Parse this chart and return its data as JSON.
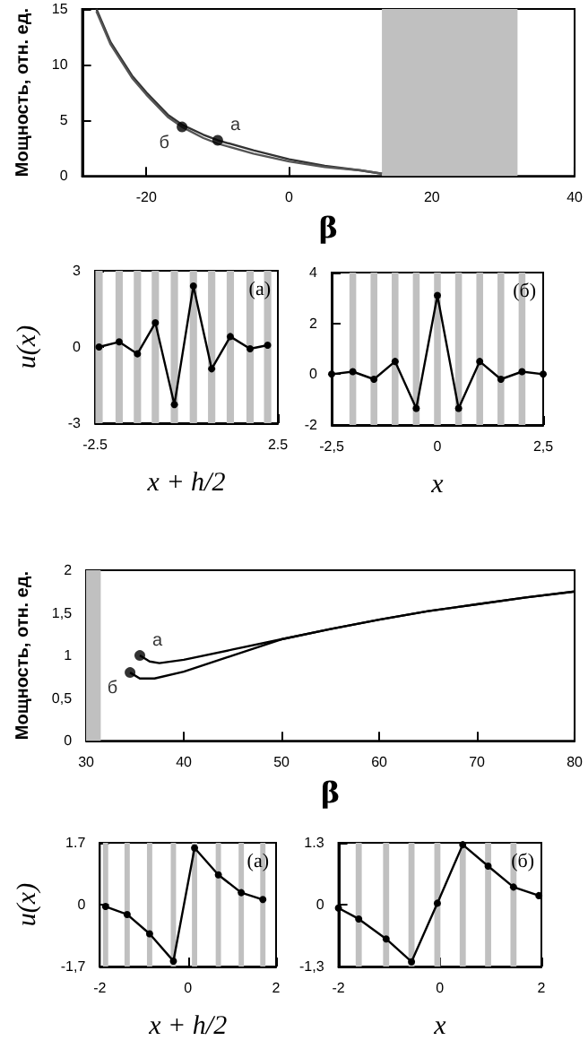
{
  "chart_data": [
    {
      "type": "line",
      "xlabel": "β",
      "ylabel": "Мощность, отн. ед.",
      "xlim": [
        -29,
        40
      ],
      "ylim": [
        0,
        15
      ],
      "xticks": [
        -20,
        0,
        20,
        40
      ],
      "yticks": [
        0,
        5,
        10,
        15
      ],
      "marker": "circle",
      "series": [
        {
          "color": "#333333",
          "marker": "none",
          "x": [
            -27,
            -25,
            -22,
            -20,
            -17,
            -15,
            -12,
            -10,
            -5,
            0,
            5,
            10,
            13
          ],
          "values": [
            15,
            12,
            9,
            7.5,
            5.5,
            4.6,
            3.7,
            3.2,
            2.3,
            1.5,
            0.9,
            0.5,
            0.2
          ]
        },
        {
          "color": "#555555",
          "marker": "none",
          "x": [
            -27,
            -25,
            -22,
            -20,
            -17,
            -15,
            -12,
            -10,
            -5,
            0,
            5,
            10,
            13
          ],
          "values": [
            14.8,
            11.8,
            8.8,
            7.3,
            5.3,
            4.4,
            3.4,
            2.9,
            2.0,
            1.3,
            0.8,
            0.5,
            0.2
          ]
        },
        {
          "type": "scatter",
          "color": "#000000",
          "x": [
            -10,
            -15
          ],
          "values": [
            3.2,
            4.4
          ]
        }
      ],
      "bands": [
        {
          "axis": "x",
          "from": 13,
          "to": 32,
          "color": "#c0c0c0"
        }
      ],
      "annotations": [
        {
          "text": "а",
          "x": -10,
          "y": 3.2
        },
        {
          "text": "б",
          "x": -15,
          "y": 4.4
        }
      ]
    },
    {
      "type": "line",
      "xlabel": "x + h/2",
      "ylabel": "u(x)",
      "xlim": [
        -2.5,
        2.5
      ],
      "ylim": [
        -3,
        3
      ],
      "xticks": [
        -2.5,
        2.5
      ],
      "yticks": [
        -3,
        0,
        3
      ],
      "marker": "circle",
      "series": [
        {
          "color": "#000000",
          "x": [
            -2.39,
            -1.84,
            -1.34,
            -0.85,
            -0.33,
            0.19,
            0.69,
            1.2,
            1.74,
            2.22
          ],
          "values": [
            0,
            0.2,
            -0.27,
            0.95,
            -2.27,
            2.4,
            -0.86,
            0.41,
            -0.07,
            0.07
          ]
        }
      ],
      "bands": [
        {
          "axis": "x",
          "from": -2.49,
          "to": -2.29,
          "color": "#c0c0c0"
        },
        {
          "axis": "x",
          "from": -1.94,
          "to": -1.74,
          "color": "#c0c0c0"
        },
        {
          "axis": "x",
          "from": -1.44,
          "to": -1.24,
          "color": "#c0c0c0"
        },
        {
          "axis": "x",
          "from": -0.95,
          "to": -0.75,
          "color": "#c0c0c0"
        },
        {
          "axis": "x",
          "from": -0.43,
          "to": -0.23,
          "color": "#c0c0c0"
        },
        {
          "axis": "x",
          "from": 0.09,
          "to": 0.29,
          "color": "#c0c0c0"
        },
        {
          "axis": "x",
          "from": 0.59,
          "to": 0.79,
          "color": "#c0c0c0"
        },
        {
          "axis": "x",
          "from": 1.1,
          "to": 1.3,
          "color": "#c0c0c0"
        },
        {
          "axis": "x",
          "from": 1.64,
          "to": 1.84,
          "color": "#c0c0c0"
        },
        {
          "axis": "x",
          "from": 2.12,
          "to": 2.32,
          "color": "#c0c0c0"
        }
      ],
      "annotations": [
        "(a)"
      ]
    },
    {
      "type": "line",
      "xlabel": "x",
      "xlim": [
        -2.5,
        2.5
      ],
      "ylim": [
        -2,
        4
      ],
      "xticks": [
        {
          "value": -2.5,
          "label": "-2,5"
        },
        0,
        {
          "value": 2.5,
          "label": "2,5"
        }
      ],
      "yticks": [
        -2,
        0,
        2,
        4
      ],
      "marker": "circle",
      "series": [
        {
          "color": "#000000",
          "x": [
            -2.5,
            -2,
            -1.5,
            -1,
            -0.5,
            0,
            0.5,
            1,
            1.5,
            2,
            2.5
          ],
          "values": [
            0,
            0.1,
            -0.2,
            0.5,
            -1.35,
            3.1,
            -1.35,
            0.5,
            -0.2,
            0.1,
            0
          ]
        }
      ],
      "bands": [
        {
          "axis": "x",
          "from": -2.08,
          "to": -1.92,
          "color": "#c0c0c0"
        },
        {
          "axis": "x",
          "from": -1.58,
          "to": -1.42,
          "color": "#c0c0c0"
        },
        {
          "axis": "x",
          "from": -1.08,
          "to": -0.92,
          "color": "#c0c0c0"
        },
        {
          "axis": "x",
          "from": -0.58,
          "to": -0.42,
          "color": "#c0c0c0"
        },
        {
          "axis": "x",
          "from": -0.08,
          "to": 0.08,
          "color": "#c0c0c0"
        },
        {
          "axis": "x",
          "from": 0.42,
          "to": 0.58,
          "color": "#c0c0c0"
        },
        {
          "axis": "x",
          "from": 0.92,
          "to": 1.08,
          "color": "#c0c0c0"
        },
        {
          "axis": "x",
          "from": 1.42,
          "to": 1.58,
          "color": "#c0c0c0"
        },
        {
          "axis": "x",
          "from": 1.92,
          "to": 2.08,
          "color": "#c0c0c0"
        }
      ],
      "annotations": [
        "(б)"
      ]
    },
    {
      "type": "line",
      "xlabel": "β",
      "ylabel": "Мощность, отн. ед.",
      "xlim": [
        30,
        80
      ],
      "ylim": [
        0,
        2
      ],
      "xticks": [
        30,
        40,
        50,
        60,
        70,
        80
      ],
      "yticks": [
        0,
        {
          "value": 0.5,
          "label": "0,5"
        },
        1,
        {
          "value": 1.5,
          "label": "1,5"
        },
        2
      ],
      "marker": "circle",
      "series": [
        {
          "color": "#000000",
          "marker": "none",
          "x": [
            35.5,
            36.5,
            37.5,
            40,
            45,
            50,
            55,
            60,
            65,
            70,
            75,
            80
          ],
          "values": [
            1.0,
            0.93,
            0.91,
            0.95,
            1.07,
            1.19,
            1.31,
            1.42,
            1.52,
            1.6,
            1.68,
            1.75
          ]
        },
        {
          "color": "#000000",
          "marker": "none",
          "x": [
            34.5,
            35.5,
            37,
            40,
            45,
            50,
            55,
            60,
            65,
            70,
            75,
            80
          ],
          "values": [
            0.8,
            0.73,
            0.73,
            0.81,
            1.0,
            1.19,
            1.31,
            1.42,
            1.52,
            1.6,
            1.68,
            1.75
          ]
        },
        {
          "type": "scatter",
          "color": "#000000",
          "x": [
            35.5,
            34.5
          ],
          "values": [
            1.0,
            0.8
          ]
        }
      ],
      "bands": [
        {
          "axis": "x",
          "from": 30,
          "to": 31.5,
          "color": "#c0c0c0"
        }
      ],
      "annotations": [
        {
          "text": "а",
          "x": 35.5,
          "y": 1.0
        },
        {
          "text": "б",
          "x": 34.5,
          "y": 0.8
        }
      ]
    },
    {
      "type": "line",
      "xlabel": "x + h/2",
      "ylabel": "u(x)",
      "xlim": [
        -2,
        2
      ],
      "ylim": [
        -1.7,
        1.7
      ],
      "xticks": [
        -2,
        0,
        2
      ],
      "yticks": [
        {
          "value": -1.7,
          "label": "-1,7"
        },
        0,
        1.7
      ],
      "marker": "circle",
      "series": [
        {
          "color": "#000000",
          "x": [
            -1.87,
            -1.38,
            -0.87,
            -0.33,
            0.15,
            0.69,
            1.21,
            1.7
          ],
          "values": [
            -0.05,
            -0.27,
            -0.8,
            -1.55,
            1.56,
            0.82,
            0.33,
            0.14
          ]
        }
      ],
      "bands": [
        {
          "axis": "x",
          "from": -1.93,
          "to": -1.81,
          "color": "#c0c0c0"
        },
        {
          "axis": "x",
          "from": -1.44,
          "to": -1.32,
          "color": "#c0c0c0"
        },
        {
          "axis": "x",
          "from": -0.93,
          "to": -0.81,
          "color": "#c0c0c0"
        },
        {
          "axis": "x",
          "from": -0.39,
          "to": -0.27,
          "color": "#c0c0c0"
        },
        {
          "axis": "x",
          "from": 0.09,
          "to": 0.21,
          "color": "#c0c0c0"
        },
        {
          "axis": "x",
          "from": 0.63,
          "to": 0.75,
          "color": "#c0c0c0"
        },
        {
          "axis": "x",
          "from": 1.15,
          "to": 1.27,
          "color": "#c0c0c0"
        },
        {
          "axis": "x",
          "from": 1.64,
          "to": 1.76,
          "color": "#c0c0c0"
        }
      ],
      "annotations": [
        "(а)"
      ]
    },
    {
      "type": "line",
      "xlabel": "x",
      "xlim": [
        -2,
        2
      ],
      "ylim": [
        -1.3,
        1.3
      ],
      "xticks": [
        -2,
        0,
        2
      ],
      "yticks": [
        {
          "value": -1.3,
          "label": "-1,3"
        },
        0,
        1.3
      ],
      "marker": "circle",
      "series": [
        {
          "color": "#000000",
          "x": [
            -2,
            -1.6,
            -1.06,
            -0.56,
            -0.05,
            0.45,
            0.95,
            1.45,
            1.95
          ],
          "values": [
            -0.07,
            -0.3,
            -0.72,
            -1.2,
            0.03,
            1.26,
            0.81,
            0.37,
            0.19
          ]
        }
      ],
      "bands": [
        {
          "axis": "x",
          "from": -1.66,
          "to": -1.54,
          "color": "#c0c0c0"
        },
        {
          "axis": "x",
          "from": -1.12,
          "to": -1.0,
          "color": "#c0c0c0"
        },
        {
          "axis": "x",
          "from": -0.62,
          "to": -0.5,
          "color": "#c0c0c0"
        },
        {
          "axis": "x",
          "from": -0.11,
          "to": 0.01,
          "color": "#c0c0c0"
        },
        {
          "axis": "x",
          "from": 0.39,
          "to": 0.51,
          "color": "#c0c0c0"
        },
        {
          "axis": "x",
          "from": 0.89,
          "to": 1.01,
          "color": "#c0c0c0"
        },
        {
          "axis": "x",
          "from": 1.39,
          "to": 1.51,
          "color": "#c0c0c0"
        }
      ],
      "annotations": [
        "(б)"
      ]
    }
  ]
}
